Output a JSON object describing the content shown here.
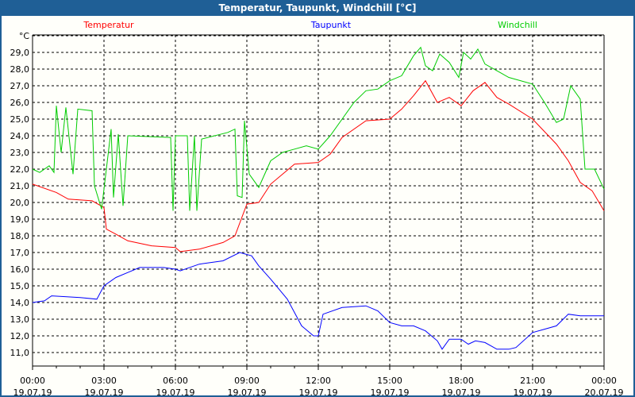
{
  "window": {
    "title": "Temperatur, Taupunkt, Windchill [°C]"
  },
  "chart_data": {
    "type": "line",
    "title": "Temperatur, Taupunkt, Windchill [°C]",
    "ylabel": "°C",
    "ylim": [
      10.2,
      30.0
    ],
    "xlim_hours": [
      0,
      24
    ],
    "yticks": [
      "29,0",
      "28,0",
      "27,0",
      "26,0",
      "25,0",
      "24,0",
      "23,0",
      "22,0",
      "21,0",
      "20,0",
      "19,0",
      "18,0",
      "17,0",
      "16,0",
      "15,0",
      "14,0",
      "13,0",
      "12,0",
      "11,0"
    ],
    "ytick_values": [
      29,
      28,
      27,
      26,
      25,
      24,
      23,
      22,
      21,
      20,
      19,
      18,
      17,
      16,
      15,
      14,
      13,
      12,
      11
    ],
    "xticks": [
      {
        "h": 0,
        "time": "00:00",
        "date": "19.07.19"
      },
      {
        "h": 3,
        "time": "03:00",
        "date": "19.07.19"
      },
      {
        "h": 6,
        "time": "06:00",
        "date": "19.07.19"
      },
      {
        "h": 9,
        "time": "09:00",
        "date": "19.07.19"
      },
      {
        "h": 12,
        "time": "12:00",
        "date": "19.07.19"
      },
      {
        "h": 15,
        "time": "15:00",
        "date": "19.07.19"
      },
      {
        "h": 18,
        "time": "18:00",
        "date": "19.07.19"
      },
      {
        "h": 21,
        "time": "21:00",
        "date": "19.07.19"
      },
      {
        "h": 24,
        "time": "00:00",
        "date": "20.07.19"
      }
    ],
    "grid": true,
    "series": [
      {
        "name": "Temperatur",
        "color": "#ff0000",
        "x": [
          0,
          1,
          1.5,
          2.5,
          3,
          3.1,
          3.5,
          4,
          5,
          6,
          6.2,
          7,
          8,
          8.5,
          9,
          9.5,
          10,
          11,
          12,
          12.5,
          13,
          14,
          15,
          15.5,
          16,
          16.5,
          17,
          17.5,
          18,
          18.5,
          19,
          19.5,
          20,
          21,
          22,
          22.5,
          23,
          23.5,
          24
        ],
        "y": [
          21.1,
          20.6,
          20.2,
          20.1,
          19.7,
          18.4,
          18.1,
          17.7,
          17.4,
          17.3,
          17.05,
          17.2,
          17.6,
          18.0,
          19.9,
          20.0,
          21.1,
          22.3,
          22.4,
          22.9,
          23.9,
          24.9,
          25.0,
          25.6,
          26.4,
          27.3,
          26.0,
          26.3,
          25.8,
          26.7,
          27.2,
          26.3,
          25.9,
          25.0,
          23.5,
          22.5,
          21.2,
          20.7,
          19.5
        ]
      },
      {
        "name": "Taupunkt",
        "color": "#0000ff",
        "x": [
          0,
          0.5,
          0.8,
          2,
          2.7,
          3,
          3.5,
          4,
          4.5,
          5.5,
          6,
          6.2,
          7,
          8,
          8.7,
          9.2,
          9.5,
          10,
          10.7,
          11.3,
          11.8,
          12,
          12.2,
          13,
          14,
          14.5,
          15,
          15.5,
          16,
          16.5,
          17,
          17.2,
          17.5,
          18,
          18.3,
          18.6,
          19,
          19.5,
          20,
          20.3,
          21,
          21.5,
          22,
          22.5,
          23,
          24
        ],
        "y": [
          14.0,
          14.1,
          14.4,
          14.3,
          14.2,
          15.0,
          15.5,
          15.8,
          16.1,
          16.1,
          16.0,
          15.9,
          16.3,
          16.5,
          17.0,
          16.8,
          16.2,
          15.4,
          14.2,
          12.6,
          12.0,
          12.0,
          13.3,
          13.7,
          13.8,
          13.5,
          12.8,
          12.6,
          12.6,
          12.3,
          11.7,
          11.2,
          11.8,
          11.8,
          11.5,
          11.7,
          11.6,
          11.2,
          11.2,
          11.3,
          12.2,
          12.4,
          12.6,
          13.3,
          13.2,
          13.2
        ]
      },
      {
        "name": "Windchill",
        "color": "#00cc00",
        "x": [
          0,
          0.3,
          0.7,
          0.9,
          1.0,
          1.2,
          1.4,
          1.7,
          1.9,
          2.5,
          2.6,
          2.9,
          3.3,
          3.4,
          3.6,
          3.8,
          4.0,
          5.8,
          5.9,
          6.0,
          6.5,
          6.6,
          6.8,
          6.9,
          7.1,
          8.2,
          8.5,
          8.6,
          8.8,
          8.9,
          9.1,
          9.5,
          10,
          10.5,
          11,
          11.5,
          12,
          12.5,
          13,
          13.5,
          14,
          14.5,
          15,
          15.5,
          16,
          16.3,
          16.5,
          16.8,
          17.1,
          17.5,
          17.9,
          18.1,
          18.4,
          18.7,
          19,
          19.5,
          20,
          21,
          21.5,
          22,
          22.3,
          22.6,
          23,
          23.2,
          23.6,
          24
        ],
        "y": [
          22.0,
          21.8,
          22.2,
          21.8,
          25.8,
          23.0,
          25.7,
          21.7,
          25.6,
          25.5,
          21.0,
          19.6,
          24.4,
          20.3,
          24.1,
          19.8,
          24.0,
          23.9,
          19.5,
          24.0,
          24.0,
          19.5,
          24.0,
          19.5,
          23.8,
          24.2,
          24.4,
          20.4,
          20.3,
          24.9,
          21.7,
          20.9,
          22.5,
          23.0,
          23.2,
          23.4,
          23.2,
          24.0,
          25.0,
          26.0,
          26.7,
          26.8,
          27.3,
          27.6,
          28.8,
          29.3,
          28.2,
          27.9,
          28.9,
          28.4,
          27.5,
          29.0,
          28.6,
          29.2,
          28.3,
          27.9,
          27.5,
          27.1,
          26.0,
          24.8,
          25.0,
          27.0,
          26.2,
          22.0,
          22.0,
          20.8
        ]
      }
    ]
  }
}
